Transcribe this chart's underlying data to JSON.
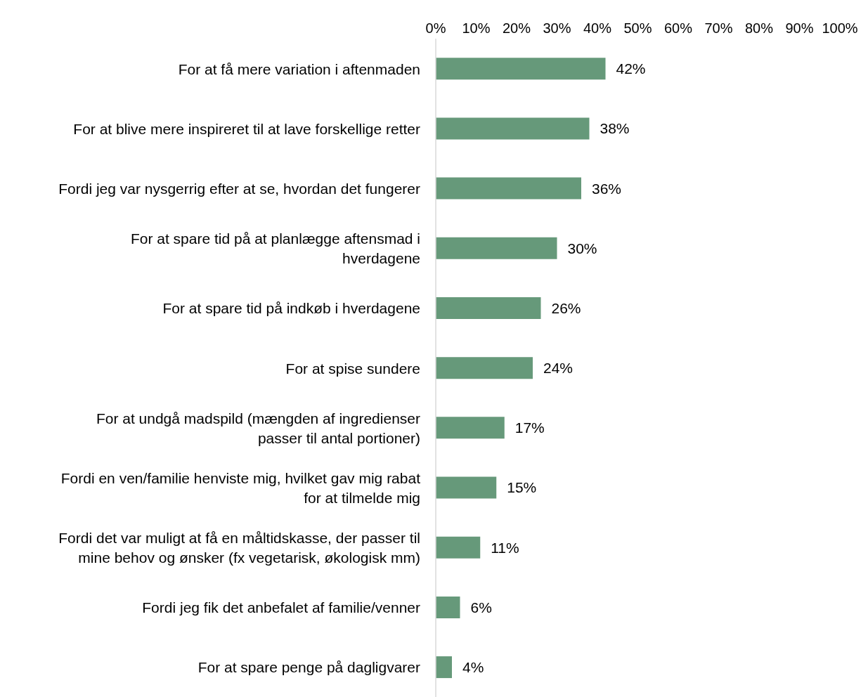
{
  "chart_data": {
    "type": "bar",
    "orientation": "horizontal",
    "categories": [
      "For at få mere variation i aftenmaden",
      "For at blive mere inspireret til at lave forskellige retter",
      "Fordi jeg var nysgerrig efter at se, hvordan det fungerer",
      "For at spare tid på at planlægge aftensmad i\nhverdagene",
      "For at spare tid på indkøb i hverdagene",
      "For at spise sundere",
      "For at undgå madspild (mængden af ingredienser\npasser til antal portioner)",
      "Fordi en ven/familie henviste mig, hvilket gav mig rabat\nfor at tilmelde mig",
      "Fordi det var muligt at få en måltidskasse, der passer til\nmine behov og ønsker (fx vegetarisk, økologisk mm)",
      "Fordi jeg fik det anbefalet af familie/venner",
      "For at spare penge på dagligvarer"
    ],
    "values": [
      42,
      38,
      36,
      30,
      26,
      24,
      17,
      15,
      11,
      6,
      4
    ],
    "value_labels": [
      "42%",
      "38%",
      "36%",
      "30%",
      "26%",
      "24%",
      "17%",
      "15%",
      "11%",
      "6%",
      "4%"
    ],
    "color": "#66997a",
    "xlim": [
      0,
      100
    ],
    "xticks": [
      {
        "value": 0,
        "label": "0%"
      },
      {
        "value": 10,
        "label": "10%"
      },
      {
        "value": 20,
        "label": "20%"
      },
      {
        "value": 30,
        "label": "30%"
      },
      {
        "value": 40,
        "label": "40%"
      },
      {
        "value": 50,
        "label": "50%"
      },
      {
        "value": 60,
        "label": "60%"
      },
      {
        "value": 70,
        "label": "70%"
      },
      {
        "value": 80,
        "label": "80%"
      },
      {
        "value": 90,
        "label": "90%"
      },
      {
        "value": 100,
        "label": "100%"
      }
    ],
    "grid": false,
    "legend": false
  }
}
